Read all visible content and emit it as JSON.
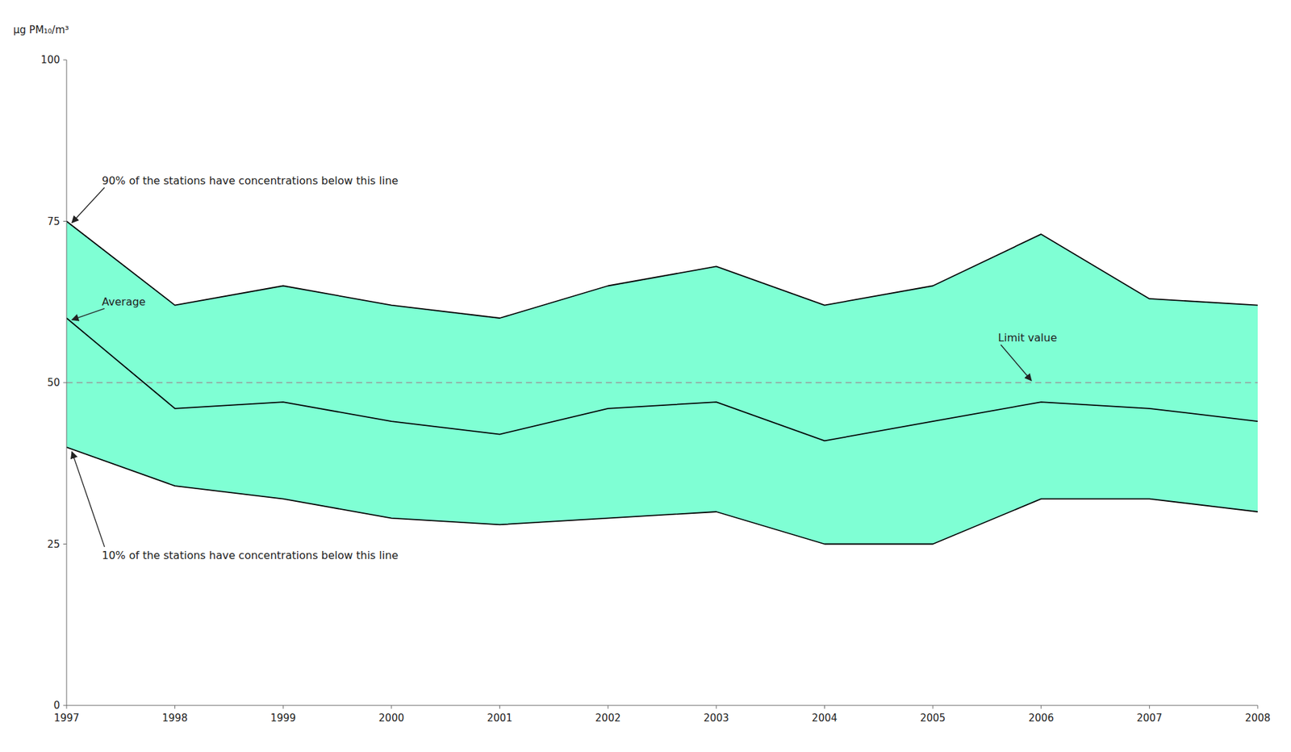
{
  "chart_data": {
    "type": "band",
    "y_label": "μg PM₁₀/m³",
    "x": [
      1997,
      1998,
      1999,
      2000,
      2001,
      2002,
      2003,
      2004,
      2005,
      2006,
      2007,
      2008
    ],
    "xlim": [
      1997,
      2008
    ],
    "xticks": [
      1997,
      1998,
      1999,
      2000,
      2001,
      2002,
      2003,
      2004,
      2005,
      2006,
      2007,
      2008
    ],
    "ylim": [
      0,
      100
    ],
    "yticks": [
      0,
      25,
      50,
      75,
      100
    ],
    "grid": false,
    "color": "#7FFFD4",
    "series": [
      {
        "color": "#000000",
        "values": [
          75,
          62,
          65,
          62,
          60,
          65,
          68,
          62,
          65,
          73,
          63,
          62
        ],
        "annotation": "90% of the stations have concentrations below this line"
      },
      {
        "color": "#000000",
        "values": [
          60,
          46,
          47,
          44,
          42,
          46,
          47,
          41,
          44,
          47,
          46,
          44
        ],
        "annotation": "Average"
      },
      {
        "color": "#000000",
        "values": [
          40,
          34,
          32,
          29,
          28,
          29,
          30,
          25,
          25,
          32,
          32,
          30
        ],
        "annotation": "10% of the stations have concentrations below this line"
      }
    ],
    "reference_line": {
      "value": 50,
      "color": "#999999",
      "line_style": "dashed",
      "annotation": "Limit value"
    }
  }
}
